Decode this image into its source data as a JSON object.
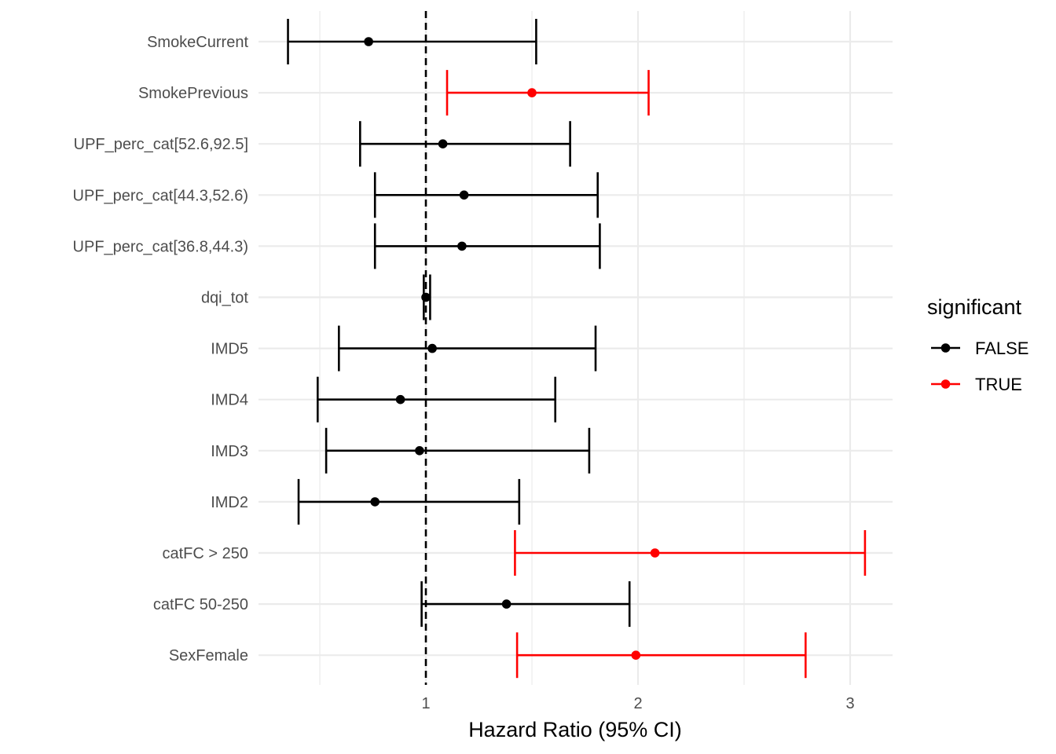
{
  "chart_data": {
    "type": "forest",
    "title": "",
    "xlabel": "Hazard Ratio (95% CI)",
    "ylabel": "",
    "xlim": [
      0.211,
      3.2
    ],
    "x_ticks": [
      1,
      2,
      3
    ],
    "x_tick_labels": [
      "1",
      "2",
      "3"
    ],
    "x_minor_gridlines": [
      0.5,
      1.5,
      2.5
    ],
    "reference_line": 1,
    "grid": true,
    "legend": {
      "title": "significant",
      "placement": "right",
      "entries": [
        {
          "label": "FALSE",
          "color": "#000000"
        },
        {
          "label": "TRUE",
          "color": "#ff0000"
        }
      ]
    },
    "rows": [
      {
        "term": "SmokeCurrent",
        "estimate": 0.73,
        "lower": 0.35,
        "upper": 1.52,
        "significant": "FALSE"
      },
      {
        "term": "SmokePrevious",
        "estimate": 1.5,
        "lower": 1.1,
        "upper": 2.05,
        "significant": "TRUE"
      },
      {
        "term": "UPF_perc_cat[52.6,92.5]",
        "estimate": 1.08,
        "lower": 0.69,
        "upper": 1.68,
        "significant": "FALSE"
      },
      {
        "term": "UPF_perc_cat[44.3,52.6)",
        "estimate": 1.18,
        "lower": 0.76,
        "upper": 1.81,
        "significant": "FALSE"
      },
      {
        "term": "UPF_perc_cat[36.8,44.3)",
        "estimate": 1.17,
        "lower": 0.76,
        "upper": 1.82,
        "significant": "FALSE"
      },
      {
        "term": "dqi_tot",
        "estimate": 1.0,
        "lower": 0.99,
        "upper": 1.02,
        "significant": "FALSE"
      },
      {
        "term": "IMD5",
        "estimate": 1.03,
        "lower": 0.59,
        "upper": 1.8,
        "significant": "FALSE"
      },
      {
        "term": "IMD4",
        "estimate": 0.88,
        "lower": 0.49,
        "upper": 1.61,
        "significant": "FALSE"
      },
      {
        "term": "IMD3",
        "estimate": 0.97,
        "lower": 0.53,
        "upper": 1.77,
        "significant": "FALSE"
      },
      {
        "term": "IMD2",
        "estimate": 0.76,
        "lower": 0.4,
        "upper": 1.44,
        "significant": "FALSE"
      },
      {
        "term": "catFC > 250",
        "estimate": 2.08,
        "lower": 1.42,
        "upper": 3.07,
        "significant": "TRUE"
      },
      {
        "term": "catFC 50-250",
        "estimate": 1.38,
        "lower": 0.98,
        "upper": 1.96,
        "significant": "FALSE"
      },
      {
        "term": "SexFemale",
        "estimate": 1.99,
        "lower": 1.43,
        "upper": 2.79,
        "significant": "TRUE"
      }
    ],
    "colors": {
      "FALSE": "#000000",
      "TRUE": "#ff0000",
      "grid": "#ebebeb"
    }
  }
}
